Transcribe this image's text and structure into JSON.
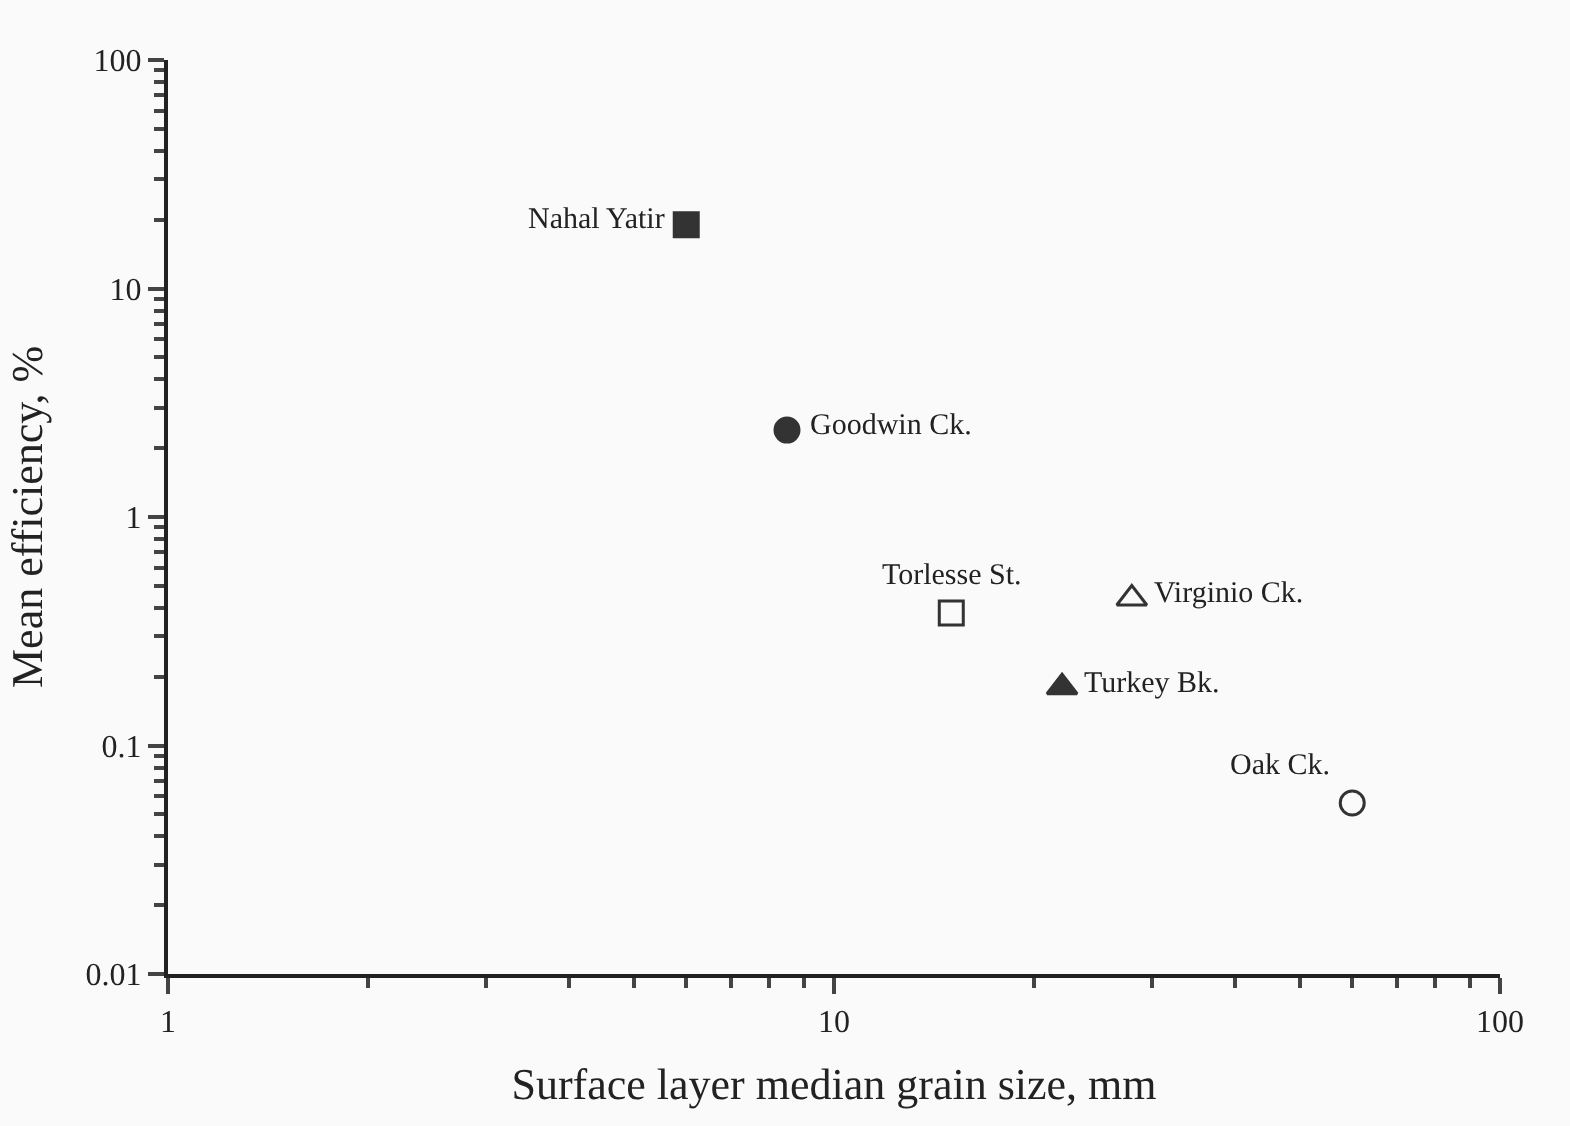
{
  "chart_data": {
    "type": "scatter",
    "xlabel": "Surface layer median grain size, mm",
    "ylabel": "Mean efficiency, %",
    "log": "xy",
    "xlim": [
      1,
      100
    ],
    "xticks": [
      1,
      10,
      100
    ],
    "ylim": [
      0.01,
      100
    ],
    "yticks": [
      0.01,
      0.1,
      1,
      10,
      100
    ],
    "legend": false,
    "series": [
      {
        "name": "Nahal Yatir",
        "color": "#333333",
        "marker": "square",
        "x": [
          6.0
        ],
        "values": [
          19
        ]
      },
      {
        "name": "Goodwin Ck.",
        "color": "#333333",
        "marker": "circle",
        "x": [
          8.5
        ],
        "values": [
          2.4
        ]
      },
      {
        "name": "Torlesse St.",
        "color": "#333333",
        "marker": "square-open",
        "x": [
          15
        ],
        "values": [
          0.38
        ]
      },
      {
        "name": "Virginio Ck.",
        "color": "#333333",
        "marker": "triangle-open",
        "x": [
          28
        ],
        "values": [
          0.44
        ]
      },
      {
        "name": "Turkey Bk.",
        "color": "#333333",
        "marker": "triangle",
        "x": [
          22
        ],
        "values": [
          0.18
        ]
      },
      {
        "name": "Oak Ck.",
        "color": "#333333",
        "marker": "circle-open",
        "x": [
          60
        ],
        "values": [
          0.056
        ]
      }
    ]
  }
}
